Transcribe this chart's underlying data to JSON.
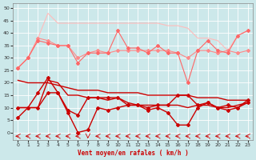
{
  "xlabel": "Vent moyen/en rafales ( km/h )",
  "bg_color": "#cce8ea",
  "grid_color": "#b0d8dc",
  "xlim": [
    -0.5,
    23.5
  ],
  "ylim": [
    -3,
    52
  ],
  "xticks": [
    0,
    1,
    2,
    3,
    4,
    5,
    6,
    7,
    8,
    9,
    10,
    11,
    12,
    13,
    14,
    15,
    16,
    17,
    18,
    19,
    20,
    21,
    22,
    23
  ],
  "yticks": [
    0,
    5,
    10,
    15,
    20,
    25,
    30,
    35,
    40,
    45,
    50
  ],
  "hours": [
    0,
    1,
    2,
    3,
    4,
    5,
    6,
    7,
    8,
    9,
    10,
    11,
    12,
    13,
    14,
    15,
    16,
    17,
    18,
    19,
    20,
    21,
    22,
    23
  ],
  "line_rafales_max_color": "#ffbbbb",
  "line_rafales_max": [
    26,
    30,
    38,
    48,
    44,
    44,
    44,
    44,
    44,
    44,
    44,
    44,
    44,
    44,
    44,
    43,
    43,
    42,
    38,
    38,
    37,
    33,
    39,
    41
  ],
  "line_rafales_moy_color": "#ff8888",
  "line_rafales_moy": [
    26,
    30,
    38,
    37,
    35,
    35,
    30,
    32,
    33,
    32,
    33,
    33,
    33,
    33,
    33,
    33,
    32,
    30,
    33,
    33,
    32,
    33,
    32,
    33
  ],
  "line_rafales_var_color": "#ff6666",
  "line_rafales_var": [
    26,
    30,
    37,
    36,
    35,
    35,
    28,
    32,
    32,
    32,
    41,
    34,
    34,
    32,
    35,
    32,
    32,
    20,
    33,
    37,
    33,
    32,
    39,
    41
  ],
  "line_vent_trend_color": "#cc0000",
  "line_vent_trend": [
    21,
    20,
    20,
    20,
    19,
    18,
    17,
    17,
    17,
    16,
    16,
    16,
    16,
    15,
    15,
    15,
    15,
    15,
    14,
    14,
    14,
    13,
    13,
    13
  ],
  "line_vent_moy_color": "#cc0000",
  "line_vent_moy": [
    10,
    10,
    16,
    22,
    16,
    9,
    7,
    14,
    14,
    14,
    14,
    11,
    11,
    10,
    11,
    11,
    15,
    15,
    11,
    12,
    10,
    11,
    10,
    13
  ],
  "line_vent_min_color": "#cc0000",
  "line_vent_min": [
    6,
    10,
    10,
    16,
    16,
    8,
    0,
    1,
    10,
    9,
    10,
    11,
    11,
    9,
    10,
    8,
    3,
    3,
    10,
    12,
    10,
    9,
    10,
    12
  ],
  "line_vent_flat_color": "#cc0000",
  "line_vent_flat": [
    10,
    10,
    10,
    21,
    20,
    15,
    15,
    14,
    14,
    13,
    14,
    12,
    11,
    11,
    11,
    11,
    11,
    10,
    11,
    11,
    10,
    10,
    11,
    12
  ],
  "arrows": [
    0,
    1,
    2,
    3,
    4,
    5,
    6,
    7,
    8,
    9,
    10,
    11,
    12,
    13,
    14,
    15,
    16,
    17,
    18,
    19,
    20,
    21,
    22,
    23
  ],
  "arrow_down_idx": [
    7
  ],
  "arrow_color": "#cc0000"
}
